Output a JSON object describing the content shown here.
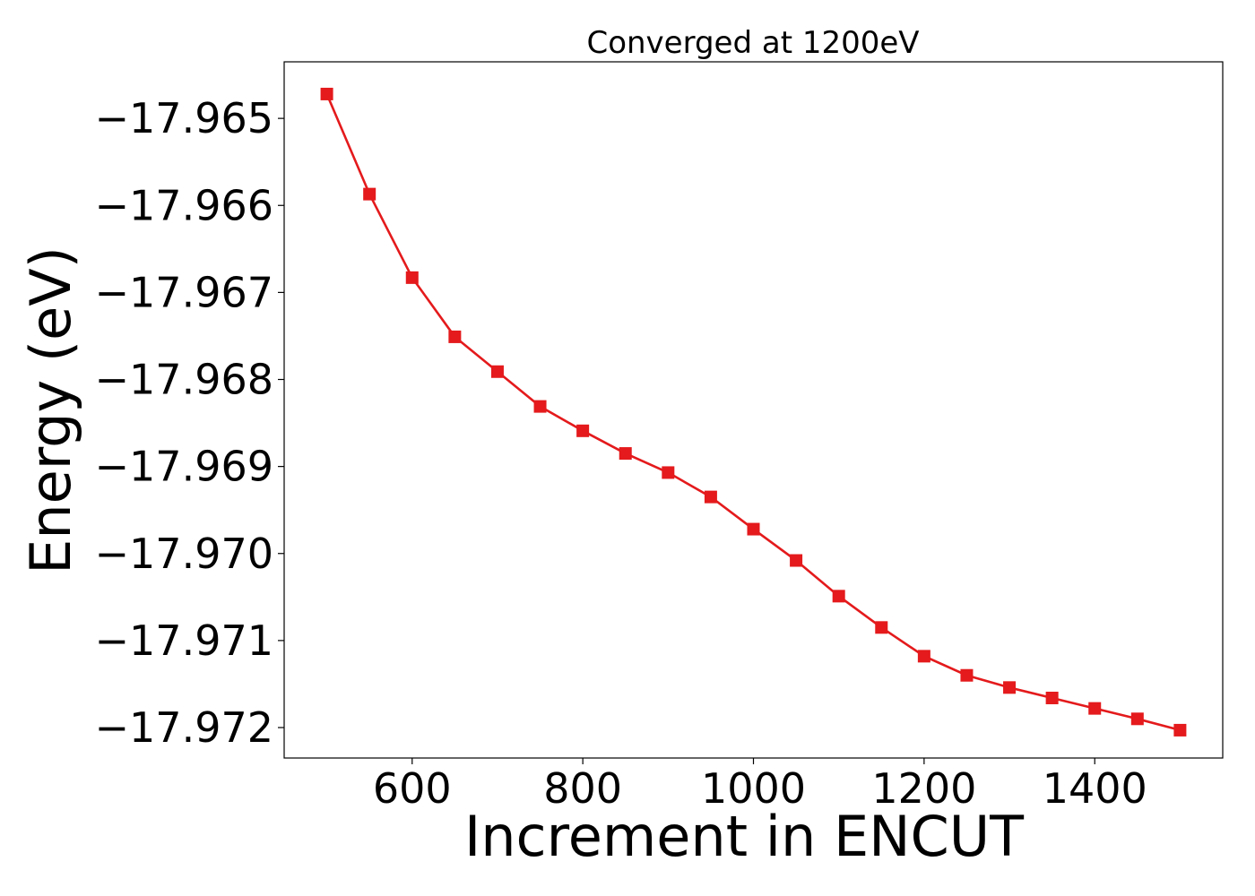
{
  "chart_data": {
    "type": "line",
    "title": "Converged at 1200eV",
    "xlabel": "Increment in ENCUT",
    "ylabel": "Energy (eV)",
    "xlim": [
      450,
      1550
    ],
    "ylim": [
      -17.97235,
      -17.96435
    ],
    "xticks": [
      600,
      800,
      1000,
      1200,
      1400
    ],
    "xtick_labels": [
      "600",
      "800",
      "1000",
      "1200",
      "1400"
    ],
    "yticks": [
      -17.965,
      -17.966,
      -17.967,
      -17.968,
      -17.969,
      -17.97,
      -17.971,
      -17.972
    ],
    "ytick_labels": [
      "−17.965",
      "−17.966",
      "−17.967",
      "−17.968",
      "−17.969",
      "−17.970",
      "−17.971",
      "−17.972"
    ],
    "grid": false,
    "series": [
      {
        "color": "#e41a1c",
        "marker": "square",
        "x": [
          500,
          550,
          600,
          650,
          700,
          750,
          800,
          850,
          900,
          950,
          1000,
          1050,
          1100,
          1150,
          1200,
          1250,
          1300,
          1350,
          1400,
          1450,
          1500
        ],
        "y": [
          -17.96472,
          -17.96587,
          -17.96683,
          -17.96751,
          -17.96791,
          -17.96831,
          -17.96859,
          -17.96885,
          -17.96907,
          -17.96935,
          -17.96972,
          -17.97008,
          -17.97049,
          -17.97085,
          -17.97118,
          -17.9714,
          -17.97154,
          -17.97166,
          -17.97178,
          -17.9719,
          -17.97203
        ]
      }
    ]
  }
}
